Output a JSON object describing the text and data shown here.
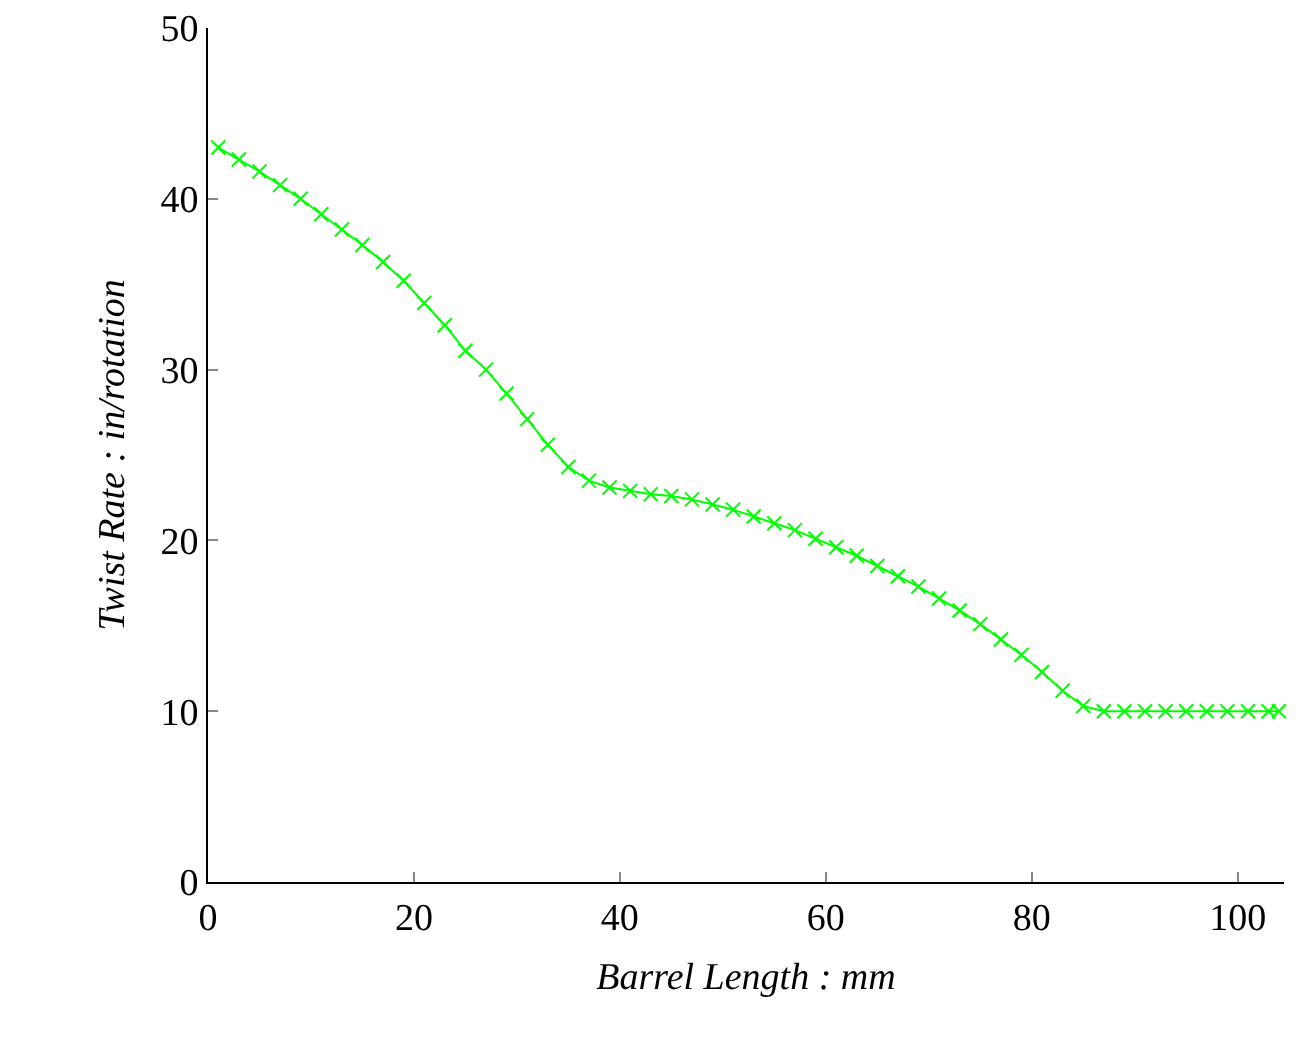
{
  "chart_data": {
    "type": "line",
    "xlabel": "Barrel Length : mm",
    "ylabel": "Twist Rate : in/rotation",
    "x": [
      1,
      3,
      5,
      7,
      9,
      11,
      13,
      15,
      17,
      19,
      21,
      23,
      25,
      27,
      29,
      31,
      33,
      35,
      37,
      39,
      41,
      43,
      45,
      47,
      49,
      51,
      53,
      55,
      57,
      59,
      61,
      63,
      65,
      67,
      69,
      71,
      73,
      75,
      77,
      79,
      81,
      83,
      85,
      87,
      89,
      91,
      93,
      95,
      97,
      99,
      101,
      103,
      104
    ],
    "series": [
      {
        "color": "#00ff00",
        "values": [
          43.0,
          42.3,
          41.6,
          40.8,
          40.0,
          39.1,
          38.2,
          37.3,
          36.3,
          35.2,
          33.9,
          32.6,
          31.1,
          30.0,
          28.6,
          27.1,
          25.6,
          24.3,
          23.5,
          23.1,
          22.9,
          22.7,
          22.6,
          22.4,
          22.1,
          21.8,
          21.4,
          21.0,
          20.6,
          20.1,
          19.6,
          19.1,
          18.5,
          17.9,
          17.3,
          16.6,
          15.9,
          15.1,
          14.2,
          13.3,
          12.3,
          11.2,
          10.3,
          10.0,
          10.0,
          10.0,
          10.0,
          10.0,
          10.0,
          10.0,
          10.0,
          10.0,
          10.0
        ]
      }
    ],
    "xlim": [
      0,
      104.5
    ],
    "ylim": [
      0,
      50
    ],
    "xticks": [
      0,
      20,
      40,
      60,
      80,
      100
    ],
    "yticks": [
      0,
      10,
      20,
      30,
      40,
      50
    ],
    "grid": false,
    "marker": "cross",
    "line_style": "solid"
  }
}
